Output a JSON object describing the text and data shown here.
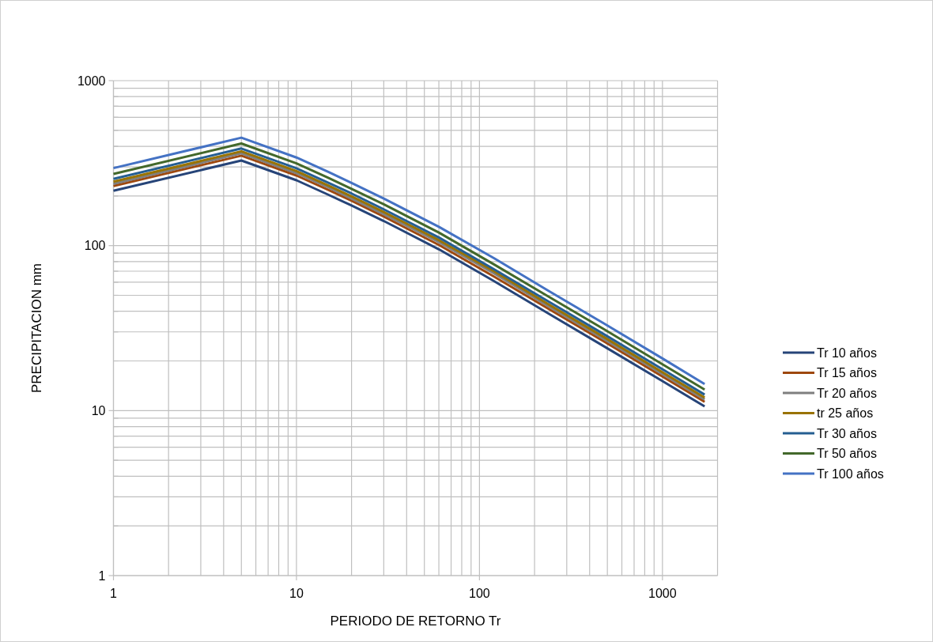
{
  "chart_data": {
    "type": "line",
    "xlabel": "PERIODO DE RETORNO Tr",
    "ylabel": "PRECIPITACION mm",
    "x": [
      1,
      5,
      10,
      15,
      20,
      30,
      60,
      120,
      240,
      480,
      1000,
      1700
    ],
    "series": [
      {
        "name": "Tr 10 años",
        "color": "#264478",
        "values": [
          215,
          328,
          249,
          203,
          175,
          141,
          95,
          61,
          38.6,
          24.5,
          15.1,
          10.6
        ]
      },
      {
        "name": "Tr 15 años",
        "color": "#9e480e",
        "values": [
          230,
          351,
          266,
          217,
          187,
          150,
          101,
          65,
          41.2,
          26.2,
          16.1,
          11.3
        ]
      },
      {
        "name": "Tr 20 años",
        "color": "#7f7f7f",
        "values": [
          237,
          363,
          275,
          225,
          193,
          155,
          105,
          68,
          42.7,
          27.1,
          16.7,
          11.7
        ]
      },
      {
        "name": "tr 25 años",
        "color": "#997300",
        "values": [
          244,
          373,
          283,
          231,
          199,
          160,
          108,
          70,
          43.9,
          27.9,
          17.1,
          12.0
        ]
      },
      {
        "name": "Tr 30 años",
        "color": "#255e91",
        "values": [
          254,
          388,
          294,
          240,
          207,
          166,
          112,
          72,
          45.6,
          29.0,
          17.8,
          12.5
        ]
      },
      {
        "name": "Tr 50 años",
        "color": "#43682b",
        "values": [
          272,
          416,
          315,
          257,
          221,
          178,
          120,
          77,
          48.9,
          31.1,
          19.1,
          13.4
        ]
      },
      {
        "name": "Tr 100 años",
        "color": "#4472c4",
        "values": [
          295,
          451,
          342,
          279,
          240,
          193,
          130,
          84,
          53,
          33.7,
          20.7,
          14.5
        ]
      }
    ],
    "log": "xy",
    "xlim": [
      1,
      2000
    ],
    "ylim": [
      1,
      1000
    ],
    "xticks": [
      1,
      {
        "value": 2,
        "label": null
      },
      {
        "value": 3,
        "label": null
      },
      {
        "value": 4,
        "label": null
      },
      {
        "value": 5,
        "label": null
      },
      {
        "value": 6,
        "label": null
      },
      {
        "value": 7,
        "label": null
      },
      {
        "value": 8,
        "label": null
      },
      {
        "value": 9,
        "label": null
      },
      10,
      {
        "value": 20,
        "label": null
      },
      {
        "value": 30,
        "label": null
      },
      {
        "value": 40,
        "label": null
      },
      {
        "value": 50,
        "label": null
      },
      {
        "value": 60,
        "label": null
      },
      {
        "value": 70,
        "label": null
      },
      {
        "value": 80,
        "label": null
      },
      {
        "value": 90,
        "label": null
      },
      100,
      {
        "value": 200,
        "label": null
      },
      {
        "value": 300,
        "label": null
      },
      {
        "value": 400,
        "label": null
      },
      {
        "value": 500,
        "label": null
      },
      {
        "value": 600,
        "label": null
      },
      {
        "value": 700,
        "label": null
      },
      {
        "value": 800,
        "label": null
      },
      {
        "value": 900,
        "label": null
      },
      1000,
      {
        "value": 2000,
        "label": null
      }
    ],
    "yticks": [
      1,
      {
        "value": 2,
        "label": null
      },
      {
        "value": 3,
        "label": null
      },
      {
        "value": 4,
        "label": null
      },
      {
        "value": 5,
        "label": null
      },
      {
        "value": 6,
        "label": null
      },
      {
        "value": 7,
        "label": null
      },
      {
        "value": 8,
        "label": null
      },
      {
        "value": 9,
        "label": null
      },
      10,
      {
        "value": 20,
        "label": null
      },
      {
        "value": 30,
        "label": null
      },
      {
        "value": 40,
        "label": null
      },
      {
        "value": 50,
        "label": null
      },
      {
        "value": 60,
        "label": null
      },
      {
        "value": 70,
        "label": null
      },
      {
        "value": 80,
        "label": null
      },
      {
        "value": 90,
        "label": null
      },
      100,
      {
        "value": 200,
        "label": null
      },
      {
        "value": 300,
        "label": null
      },
      {
        "value": 400,
        "label": null
      },
      {
        "value": 500,
        "label": null
      },
      {
        "value": 600,
        "label": null
      },
      {
        "value": 700,
        "label": null
      },
      {
        "value": 800,
        "label": null
      },
      {
        "value": 900,
        "label": null
      },
      1000
    ],
    "grid": true,
    "legend": "right",
    "marker": "none",
    "line_style": "solid"
  }
}
